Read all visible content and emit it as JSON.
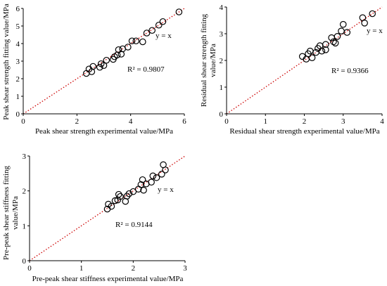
{
  "chart_data": [
    {
      "type": "scatter",
      "xlabel": "Peak shear strength experimental value/MPa",
      "ylabel": "Peak shear strength fitting value/MPa",
      "xlim": [
        0,
        6
      ],
      "ylim": [
        0,
        6
      ],
      "xticks": [
        "0",
        "2",
        "4",
        "6"
      ],
      "yticks": [
        "0",
        "1",
        "2",
        "3",
        "4",
        "5",
        "6"
      ],
      "annotations": [
        "y = x",
        "R² = 0.9807"
      ],
      "reference_line": {
        "label": "y = x",
        "color": "#cc0000",
        "style": "dotted"
      },
      "marker": {
        "shape": "open circle",
        "edge_color": "#000000",
        "fill": "#ffffff"
      },
      "points": [
        {
          "x": 2.35,
          "y": 2.3
        },
        {
          "x": 2.45,
          "y": 2.55
        },
        {
          "x": 2.55,
          "y": 2.4
        },
        {
          "x": 2.6,
          "y": 2.7
        },
        {
          "x": 2.85,
          "y": 2.65
        },
        {
          "x": 2.9,
          "y": 2.85
        },
        {
          "x": 3.0,
          "y": 2.75
        },
        {
          "x": 3.1,
          "y": 3.05
        },
        {
          "x": 3.35,
          "y": 3.1
        },
        {
          "x": 3.4,
          "y": 3.25
        },
        {
          "x": 3.5,
          "y": 3.35
        },
        {
          "x": 3.65,
          "y": 3.4
        },
        {
          "x": 3.7,
          "y": 3.7
        },
        {
          "x": 3.55,
          "y": 3.65
        },
        {
          "x": 3.9,
          "y": 3.8
        },
        {
          "x": 4.05,
          "y": 4.15
        },
        {
          "x": 4.2,
          "y": 4.15
        },
        {
          "x": 4.45,
          "y": 4.1
        },
        {
          "x": 4.6,
          "y": 4.6
        },
        {
          "x": 4.8,
          "y": 4.75
        },
        {
          "x": 5.05,
          "y": 5.05
        },
        {
          "x": 5.2,
          "y": 5.25
        },
        {
          "x": 5.8,
          "y": 5.8
        }
      ]
    },
    {
      "type": "scatter",
      "xlabel": "Residual shear strength experimental value/MPa",
      "ylabel": [
        "Residual shear strength fitting",
        "value/MPa"
      ],
      "xlim": [
        0,
        4
      ],
      "ylim": [
        0,
        4
      ],
      "xticks": [
        "0",
        "1",
        "2",
        "3",
        "4"
      ],
      "yticks": [
        "0",
        "1",
        "2",
        "3",
        "4"
      ],
      "annotations": [
        "y = x",
        "R² = 0.9366"
      ],
      "reference_line": {
        "label": "y = x",
        "color": "#cc0000",
        "style": "dotted"
      },
      "marker": {
        "shape": "open circle",
        "edge_color": "#000000",
        "fill": "#ffffff"
      },
      "points": [
        {
          "x": 1.95,
          "y": 2.15
        },
        {
          "x": 2.05,
          "y": 2.05
        },
        {
          "x": 2.1,
          "y": 2.25
        },
        {
          "x": 2.15,
          "y": 2.35
        },
        {
          "x": 2.2,
          "y": 2.1
        },
        {
          "x": 2.3,
          "y": 2.3
        },
        {
          "x": 2.35,
          "y": 2.45
        },
        {
          "x": 2.4,
          "y": 2.55
        },
        {
          "x": 2.45,
          "y": 2.35
        },
        {
          "x": 2.55,
          "y": 2.4
        },
        {
          "x": 2.55,
          "y": 2.6
        },
        {
          "x": 2.7,
          "y": 2.85
        },
        {
          "x": 2.75,
          "y": 2.7
        },
        {
          "x": 2.8,
          "y": 2.65
        },
        {
          "x": 2.85,
          "y": 2.9
        },
        {
          "x": 2.95,
          "y": 3.1
        },
        {
          "x": 3.0,
          "y": 3.35
        },
        {
          "x": 3.1,
          "y": 3.05
        },
        {
          "x": 3.5,
          "y": 3.6
        },
        {
          "x": 3.55,
          "y": 3.4
        },
        {
          "x": 3.75,
          "y": 3.75
        }
      ]
    },
    {
      "type": "scatter",
      "xlabel": "Pre-peak shear stiffness experimental value/MPa",
      "ylabel": [
        "Pre-peak shear stiffness fitting",
        "value/MPa"
      ],
      "xlim": [
        0,
        3
      ],
      "ylim": [
        0,
        3
      ],
      "xticks": [
        "0",
        "1",
        "2",
        "3"
      ],
      "yticks": [
        "0",
        "1",
        "2",
        "3"
      ],
      "annotations": [
        "y = x",
        "R² = 0.9144"
      ],
      "reference_line": {
        "label": "y = x",
        "color": "#cc0000",
        "style": "dotted"
      },
      "marker": {
        "shape": "open circle",
        "edge_color": "#000000",
        "fill": "#ffffff"
      },
      "points": [
        {
          "x": 1.5,
          "y": 1.48
        },
        {
          "x": 1.52,
          "y": 1.62
        },
        {
          "x": 1.58,
          "y": 1.56
        },
        {
          "x": 1.65,
          "y": 1.72
        },
        {
          "x": 1.7,
          "y": 1.74
        },
        {
          "x": 1.72,
          "y": 1.9
        },
        {
          "x": 1.75,
          "y": 1.84
        },
        {
          "x": 1.85,
          "y": 1.7
        },
        {
          "x": 1.88,
          "y": 1.85
        },
        {
          "x": 1.92,
          "y": 1.92
        },
        {
          "x": 2.0,
          "y": 1.98
        },
        {
          "x": 2.1,
          "y": 2.05
        },
        {
          "x": 2.15,
          "y": 2.18
        },
        {
          "x": 2.18,
          "y": 2.32
        },
        {
          "x": 2.2,
          "y": 2.02
        },
        {
          "x": 2.25,
          "y": 2.2
        },
        {
          "x": 2.35,
          "y": 2.25
        },
        {
          "x": 2.38,
          "y": 2.43
        },
        {
          "x": 2.45,
          "y": 2.38
        },
        {
          "x": 2.55,
          "y": 2.48
        },
        {
          "x": 2.58,
          "y": 2.75
        },
        {
          "x": 2.62,
          "y": 2.6
        }
      ]
    }
  ]
}
